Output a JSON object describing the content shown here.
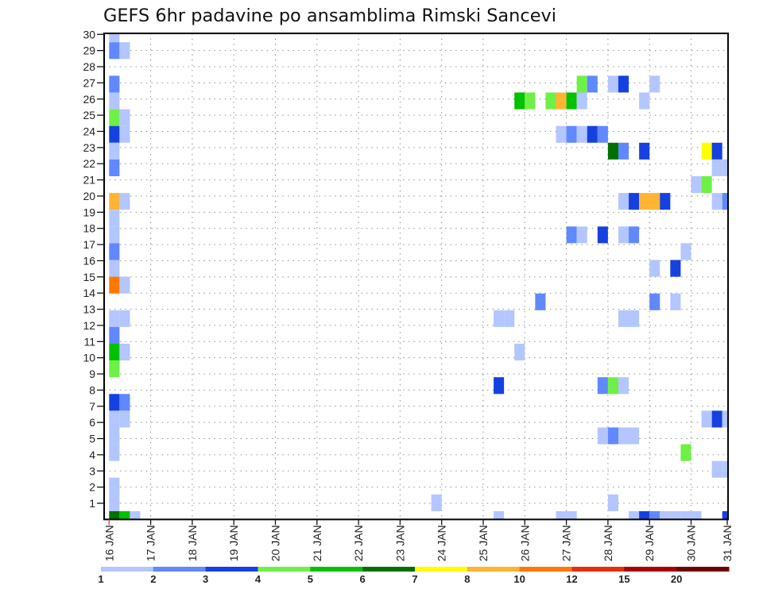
{
  "chart_data": {
    "type": "heatmap",
    "title": "GEFS 6hr padavine po ansamblima Rimski Sancevi",
    "xlabel": "",
    "ylabel": "",
    "x_unit": "days since 16 JAN 00Z, 6-hour steps",
    "xlim": [
      -0.12,
      14.89
    ],
    "ylim": [
      0,
      30.06
    ],
    "grid": true,
    "x_ticks": [
      {
        "day": 0,
        "label": "16 JAN"
      },
      {
        "day": 1,
        "label": "17 JAN"
      },
      {
        "day": 2,
        "label": "18 JAN"
      },
      {
        "day": 3,
        "label": "19 JAN"
      },
      {
        "day": 4,
        "label": "20 JAN"
      },
      {
        "day": 5,
        "label": "21 JAN"
      },
      {
        "day": 6,
        "label": "22 JAN"
      },
      {
        "day": 7,
        "label": "23 JAN"
      },
      {
        "day": 8,
        "label": "24 JAN"
      },
      {
        "day": 9,
        "label": "25 JAN"
      },
      {
        "day": 10,
        "label": "26 JAN"
      },
      {
        "day": 11,
        "label": "27 JAN"
      },
      {
        "day": 12,
        "label": "28 JAN"
      },
      {
        "day": 13,
        "label": "29 JAN"
      },
      {
        "day": 14,
        "label": "30 JAN"
      },
      {
        "day": 15,
        "label": "31 JAN"
      }
    ],
    "y_ticks": [
      "1",
      "2",
      "3",
      "4",
      "5",
      "6",
      "7",
      "8",
      "9",
      "10",
      "11",
      "12",
      "13",
      "14",
      "15",
      "16",
      "17",
      "18",
      "19",
      "20",
      "21",
      "22",
      "23",
      "24",
      "25",
      "26",
      "27",
      "28",
      "29",
      "30"
    ],
    "legend": {
      "placement": "bottom",
      "bins": [
        {
          "min": 1,
          "max": 2,
          "color": "#b4c6ff"
        },
        {
          "min": 2,
          "max": 3,
          "color": "#6088ff"
        },
        {
          "min": 3,
          "max": 4,
          "color": "#1541e0"
        },
        {
          "min": 4,
          "max": 5,
          "color": "#6ef046"
        },
        {
          "min": 5,
          "max": 6,
          "color": "#00c200"
        },
        {
          "min": 6,
          "max": 7,
          "color": "#007000"
        },
        {
          "min": 7,
          "max": 8,
          "color": "#ffff00"
        },
        {
          "min": 8,
          "max": 10,
          "color": "#ffb432"
        },
        {
          "min": 10,
          "max": 12,
          "color": "#ff7800"
        },
        {
          "min": 12,
          "max": 15,
          "color": "#e82e0a"
        },
        {
          "min": 15,
          "max": 20,
          "color": "#aa0000"
        },
        {
          "min": 20,
          "max": null,
          "color": "#700000"
        }
      ],
      "labels": [
        "1",
        "2",
        "3",
        "4",
        "5",
        "6",
        "7",
        "8",
        "10",
        "12",
        "15",
        "20"
      ]
    },
    "cell_fields": [
      "row",
      "step",
      "bin_min"
    ],
    "cells": [
      [
        29,
        0,
        1
      ],
      [
        28,
        0,
        2
      ],
      [
        26,
        0,
        2
      ],
      [
        25,
        0,
        1
      ],
      [
        24,
        0,
        4
      ],
      [
        23,
        0,
        3
      ],
      [
        22,
        0,
        1
      ],
      [
        21,
        0,
        2
      ],
      [
        19,
        0,
        8
      ],
      [
        18,
        0,
        1
      ],
      [
        17,
        0,
        1
      ],
      [
        16,
        0,
        2
      ],
      [
        15,
        0,
        1
      ],
      [
        14,
        0,
        10
      ],
      [
        12,
        0,
        1
      ],
      [
        11,
        0,
        2
      ],
      [
        10,
        0,
        5
      ],
      [
        9,
        0,
        4
      ],
      [
        7,
        0,
        3
      ],
      [
        6,
        0,
        1
      ],
      [
        5,
        0,
        1
      ],
      [
        4,
        0,
        1
      ],
      [
        2,
        0,
        1
      ],
      [
        1,
        0,
        1
      ],
      [
        0,
        0,
        6
      ],
      [
        28,
        1,
        1
      ],
      [
        24,
        1,
        1
      ],
      [
        23,
        1,
        1
      ],
      [
        19,
        1,
        1
      ],
      [
        14,
        1,
        1
      ],
      [
        12,
        1,
        1
      ],
      [
        10,
        1,
        1
      ],
      [
        7,
        1,
        2
      ],
      [
        6,
        1,
        1
      ],
      [
        0,
        1,
        5
      ],
      [
        0,
        2,
        1
      ],
      [
        1,
        31,
        1
      ],
      [
        12,
        37,
        1
      ],
      [
        8,
        37,
        3
      ],
      [
        0,
        37,
        1
      ],
      [
        12,
        38,
        1
      ],
      [
        25,
        39,
        5
      ],
      [
        10,
        39,
        1
      ],
      [
        25,
        40,
        4
      ],
      [
        13,
        41,
        2
      ],
      [
        25,
        42,
        4
      ],
      [
        25,
        43,
        8
      ],
      [
        23,
        43,
        1
      ],
      [
        0,
        43,
        1
      ],
      [
        25,
        44,
        5
      ],
      [
        23,
        44,
        2
      ],
      [
        17,
        44,
        2
      ],
      [
        0,
        44,
        1
      ],
      [
        26,
        45,
        4
      ],
      [
        25,
        45,
        1
      ],
      [
        23,
        45,
        1
      ],
      [
        17,
        45,
        1
      ],
      [
        26,
        46,
        2
      ],
      [
        23,
        46,
        3
      ],
      [
        23,
        47,
        2
      ],
      [
        17,
        47,
        3
      ],
      [
        8,
        47,
        2
      ],
      [
        5,
        47,
        1
      ],
      [
        26,
        48,
        1
      ],
      [
        22,
        48,
        6
      ],
      [
        8,
        48,
        4
      ],
      [
        5,
        48,
        2
      ],
      [
        1,
        48,
        1
      ],
      [
        26,
        49,
        3
      ],
      [
        22,
        49,
        2
      ],
      [
        19,
        49,
        1
      ],
      [
        17,
        49,
        1
      ],
      [
        12,
        49,
        1
      ],
      [
        8,
        49,
        1
      ],
      [
        5,
        49,
        1
      ],
      [
        19,
        50,
        3
      ],
      [
        17,
        50,
        2
      ],
      [
        12,
        50,
        1
      ],
      [
        5,
        50,
        1
      ],
      [
        0,
        50,
        1
      ],
      [
        25,
        51,
        1
      ],
      [
        22,
        51,
        3
      ],
      [
        19,
        51,
        8
      ],
      [
        0,
        51,
        3
      ],
      [
        26,
        52,
        1
      ],
      [
        19,
        52,
        8
      ],
      [
        15,
        52,
        1
      ],
      [
        13,
        52,
        2
      ],
      [
        0,
        52,
        2
      ],
      [
        19,
        53,
        3
      ],
      [
        0,
        53,
        1
      ],
      [
        15,
        54,
        3
      ],
      [
        13,
        54,
        1
      ],
      [
        0,
        54,
        1
      ],
      [
        16,
        55,
        1
      ],
      [
        4,
        55,
        4
      ],
      [
        0,
        55,
        1
      ],
      [
        20,
        56,
        1
      ],
      [
        0,
        56,
        1
      ],
      [
        22,
        57,
        7
      ],
      [
        20,
        57,
        4
      ],
      [
        6,
        57,
        1
      ],
      [
        22,
        58,
        3
      ],
      [
        21,
        58,
        1
      ],
      [
        19,
        58,
        1
      ],
      [
        6,
        58,
        3
      ],
      [
        3,
        58,
        1
      ],
      [
        21,
        59,
        1
      ],
      [
        19,
        59,
        2
      ],
      [
        6,
        59,
        1
      ],
      [
        3,
        59,
        1
      ],
      [
        0,
        59,
        3
      ]
    ]
  }
}
